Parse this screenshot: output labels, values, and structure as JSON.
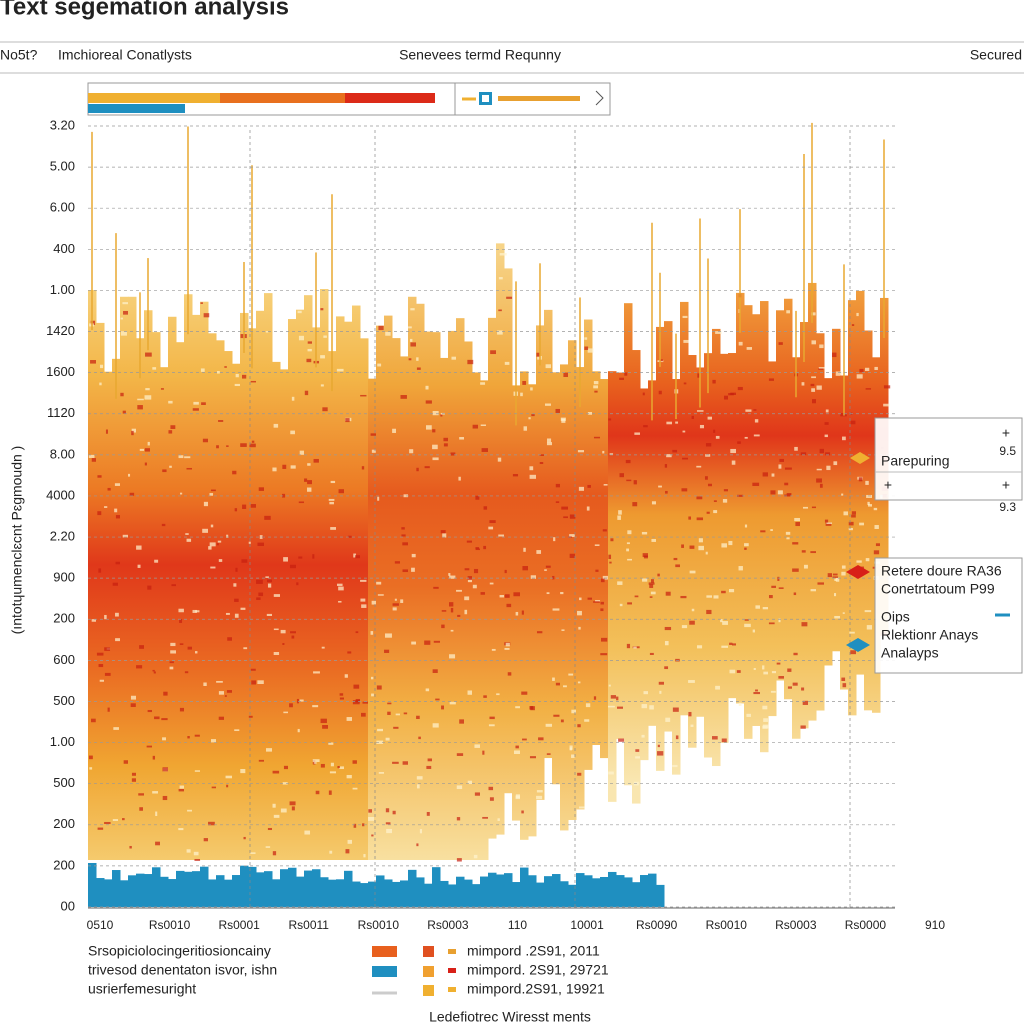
{
  "chart_data": {
    "type": "heatmap",
    "title": "Text segemation analysis",
    "header": {
      "left": "No5t?",
      "column1": "Imchioreal Conatlysts",
      "column2": "Senevees termd Requnny",
      "right": "Secured"
    },
    "y_axis_label": "(ıntotɥumenclɛcnt Pɛgmoudn )",
    "y_labels": [
      "3.20",
      "5.00",
      "6.00",
      "400",
      "1.00",
      "1420",
      "1600",
      "1120",
      "8.00",
      "4000",
      "2.20",
      "900",
      "200",
      "600",
      "500",
      "1.00",
      "500",
      "200",
      "200",
      "00"
    ],
    "x_labels": [
      "0510",
      "Rs0010",
      "Rs0001",
      "Rs0011",
      "Rs0010",
      "Rs0003",
      "110",
      "10001",
      "Rs0090",
      "Rs0010",
      "Rs0003",
      "Rs0000",
      "910"
    ],
    "panel1": {
      "label": "Parepuring",
      "value_top": "9.5",
      "value_bottom": "9.3"
    },
    "panel2": {
      "lines": [
        "Retere doure RA36",
        "Conetrtatoum P99",
        "Oips",
        "Rlektionr Anays",
        "Analayps"
      ]
    },
    "legend_left": [
      "Srsopiciolocingeritiosioncainy",
      "trivesod denentaton isvor, ishn",
      "usrierfemesuright"
    ],
    "legend_right": [
      "mimpord .2S91, 2011",
      "mimpord. 2S91, 29721",
      "mimpord.2S91, 19921"
    ],
    "footer": "Ledefiotrec Wiresst ments"
  }
}
